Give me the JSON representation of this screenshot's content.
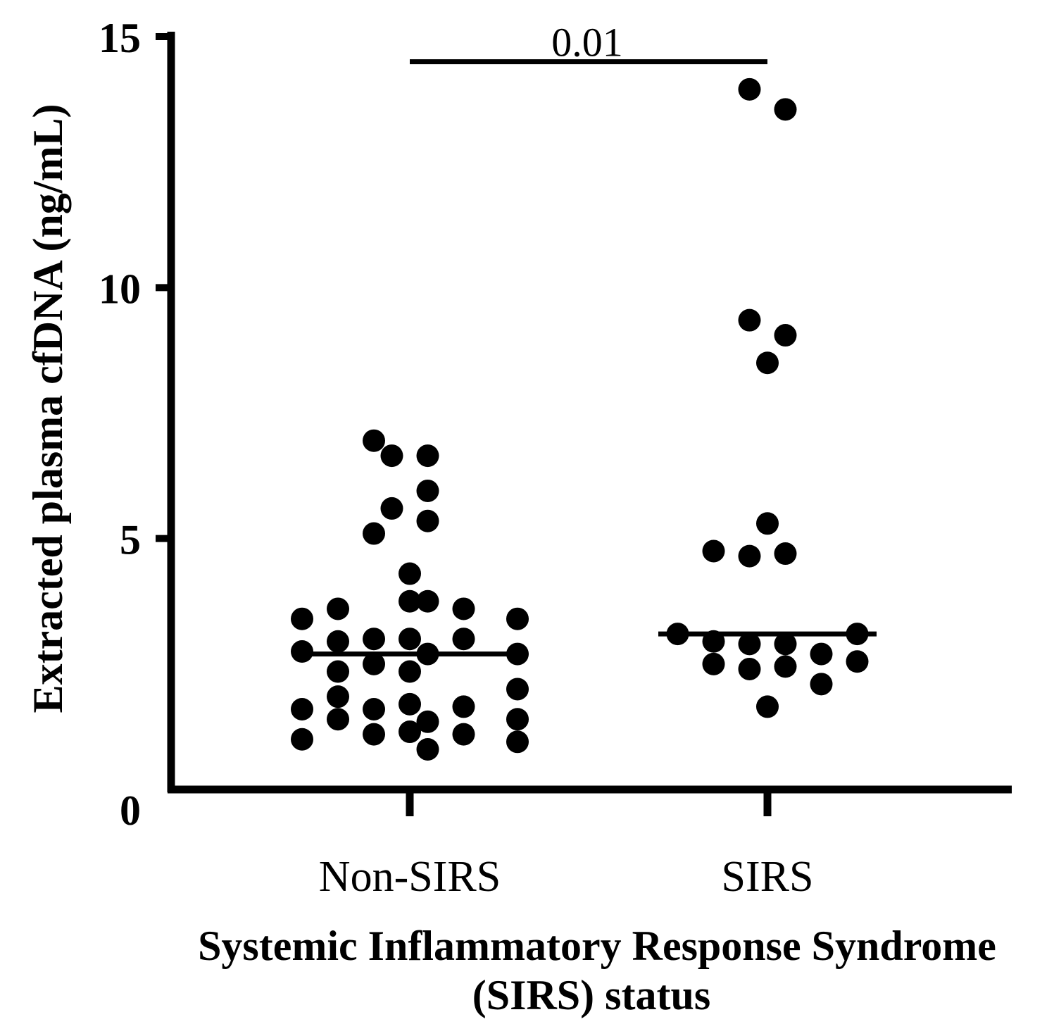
{
  "chart_data": {
    "type": "scatter",
    "title": "",
    "ylabel": "Extracted plasma cfDNA (ng/mL)",
    "xlabel_lines": [
      "Systemic Inflammatory Response Syndrome",
      "(SIRS) status"
    ],
    "ylim": [
      0,
      15
    ],
    "yticks": [
      0,
      5,
      10,
      15
    ],
    "grid": false,
    "categories": [
      "Non-SIRS",
      "SIRS"
    ],
    "series": [
      {
        "name": "Non-SIRS",
        "points": [
          {
            "offset": -2,
            "y": 6.95
          },
          {
            "offset": -1,
            "y": 6.65
          },
          {
            "offset": 1,
            "y": 6.65
          },
          {
            "offset": 1,
            "y": 5.95
          },
          {
            "offset": -1,
            "y": 5.6
          },
          {
            "offset": 1,
            "y": 5.35
          },
          {
            "offset": -2,
            "y": 5.1
          },
          {
            "offset": 0,
            "y": 4.3
          },
          {
            "offset": 0,
            "y": 3.75
          },
          {
            "offset": 1,
            "y": 3.75
          },
          {
            "offset": -4,
            "y": 3.6
          },
          {
            "offset": 3,
            "y": 3.6
          },
          {
            "offset": -6,
            "y": 3.4
          },
          {
            "offset": 6,
            "y": 3.4
          },
          {
            "offset": -4,
            "y": 2.95
          },
          {
            "offset": -2,
            "y": 3.0
          },
          {
            "offset": 0,
            "y": 3.0
          },
          {
            "offset": 3,
            "y": 3.0
          },
          {
            "offset": -6,
            "y": 2.75
          },
          {
            "offset": 1,
            "y": 2.7
          },
          {
            "offset": 6,
            "y": 2.7
          },
          {
            "offset": -2,
            "y": 2.5
          },
          {
            "offset": -4,
            "y": 2.35
          },
          {
            "offset": 0,
            "y": 2.35
          },
          {
            "offset": 6,
            "y": 2.0
          },
          {
            "offset": -4,
            "y": 1.85
          },
          {
            "offset": 0,
            "y": 1.7
          },
          {
            "offset": -6,
            "y": 1.6
          },
          {
            "offset": -2,
            "y": 1.6
          },
          {
            "offset": 3,
            "y": 1.65
          },
          {
            "offset": -4,
            "y": 1.4
          },
          {
            "offset": 1,
            "y": 1.35
          },
          {
            "offset": 6,
            "y": 1.4
          },
          {
            "offset": -2,
            "y": 1.1
          },
          {
            "offset": 0,
            "y": 1.15
          },
          {
            "offset": 3,
            "y": 1.1
          },
          {
            "offset": -6,
            "y": 1.0
          },
          {
            "offset": 6,
            "y": 0.95
          },
          {
            "offset": 1,
            "y": 0.8
          }
        ],
        "median": 2.7
      },
      {
        "name": "SIRS",
        "points": [
          {
            "offset": -1,
            "y": 13.95
          },
          {
            "offset": 1,
            "y": 13.55
          },
          {
            "offset": -1,
            "y": 9.35
          },
          {
            "offset": 1,
            "y": 9.05
          },
          {
            "offset": 0,
            "y": 8.5
          },
          {
            "offset": 0,
            "y": 5.3
          },
          {
            "offset": -3,
            "y": 4.75
          },
          {
            "offset": -1,
            "y": 4.65
          },
          {
            "offset": 1,
            "y": 4.7
          },
          {
            "offset": -5,
            "y": 3.1
          },
          {
            "offset": -3,
            "y": 2.95
          },
          {
            "offset": -1,
            "y": 2.9
          },
          {
            "offset": 1,
            "y": 2.9
          },
          {
            "offset": 5,
            "y": 3.1
          },
          {
            "offset": 3,
            "y": 2.7
          },
          {
            "offset": 5,
            "y": 2.55
          },
          {
            "offset": -3,
            "y": 2.5
          },
          {
            "offset": -1,
            "y": 2.4
          },
          {
            "offset": 1,
            "y": 2.45
          },
          {
            "offset": 3,
            "y": 2.1
          },
          {
            "offset": 0,
            "y": 1.65
          }
        ],
        "median": 3.1
      }
    ],
    "annotations": [
      {
        "text": "0.01",
        "from": "Non-SIRS",
        "to": "SIRS",
        "y": 14.5
      }
    ]
  }
}
